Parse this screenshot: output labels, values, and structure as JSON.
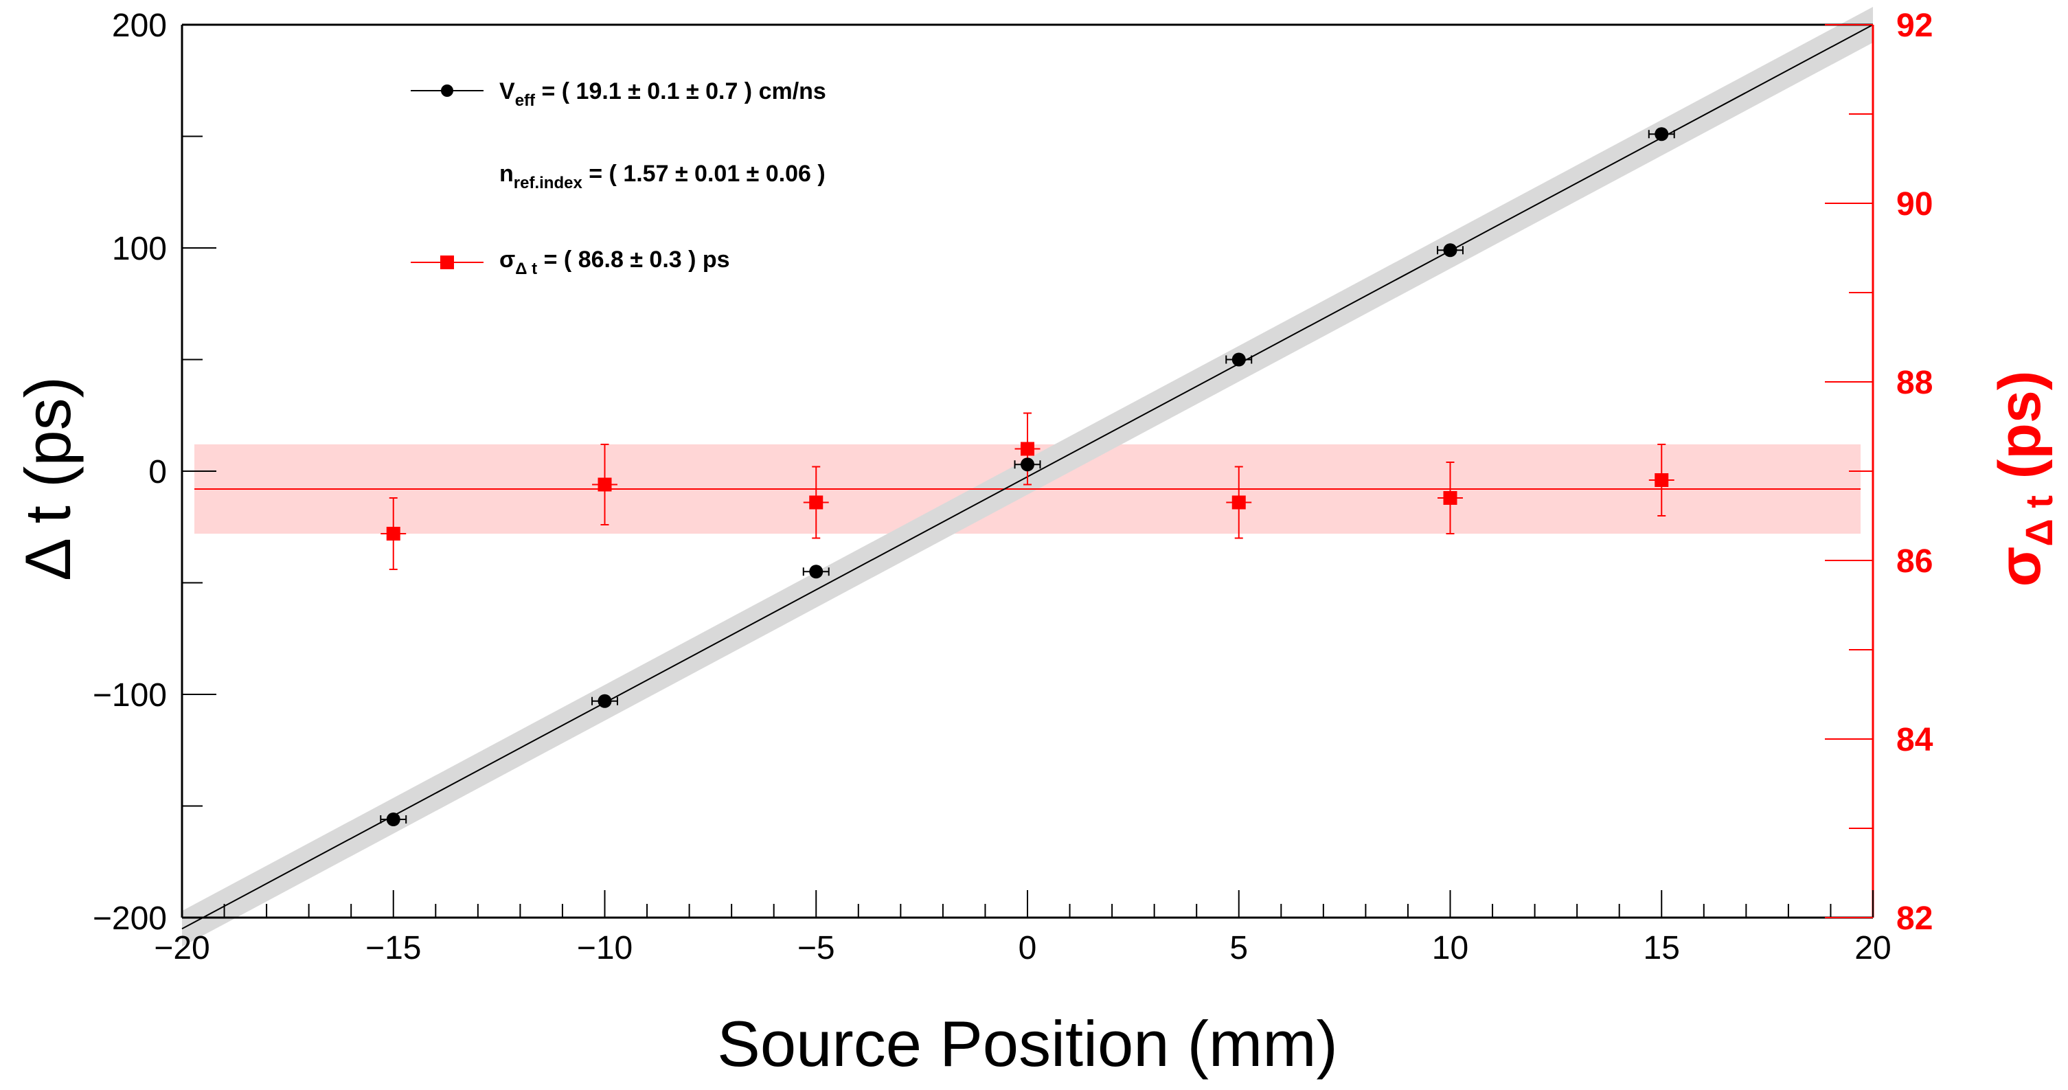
{
  "chart_data": {
    "type": "scatter",
    "xlabel": "Source Position (mm)",
    "ylabel_left": "Δ t (ps)",
    "ylabel_right_main": "σ",
    "ylabel_right_sub": "Δ t",
    "ylabel_right_unit": " (ps)",
    "xlim": [
      -20,
      20
    ],
    "ylim_left": [
      -200,
      200
    ],
    "ylim_right": [
      82,
      92
    ],
    "x_ticks": [
      -20,
      -15,
      -10,
      -5,
      0,
      5,
      10,
      15,
      20
    ],
    "x_tick_labels": [
      "−20",
      "−15",
      "−10",
      "−5",
      "0",
      "5",
      "10",
      "15",
      "20"
    ],
    "y_left_ticks": [
      -200,
      -100,
      0,
      100,
      200
    ],
    "y_left_tick_labels": [
      "−200",
      "−100",
      "0",
      "100",
      "200"
    ],
    "y_right_ticks": [
      82,
      84,
      86,
      88,
      90,
      92
    ],
    "y_right_tick_labels": [
      "82",
      "84",
      "86",
      "88",
      "90",
      "92"
    ],
    "colors": {
      "series1": "#000000",
      "series2": "#ff0000",
      "band1": "#d9d9d9",
      "band2": "#ffd6d6"
    },
    "series": [
      {
        "name": "Δt",
        "axis": "left",
        "marker": "circle",
        "x": [
          -15,
          -10,
          -5,
          0,
          5,
          10,
          15
        ],
        "y": [
          -156,
          -103,
          -45,
          3,
          50,
          99,
          151
        ],
        "xerr": 0.3,
        "fit": {
          "x": [
            -20,
            20
          ],
          "y": [
            -205,
            200
          ],
          "band_halfwidth": 8
        }
      },
      {
        "name": "σΔt",
        "axis": "right",
        "marker": "square",
        "x": [
          -15,
          -10,
          -5,
          0,
          5,
          10,
          15
        ],
        "y": [
          86.3,
          86.85,
          86.65,
          87.25,
          86.65,
          86.7,
          86.9
        ],
        "yerr": [
          0.4,
          0.45,
          0.4,
          0.4,
          0.4,
          0.4,
          0.4
        ],
        "xerr": 0.3,
        "fit": {
          "value": 86.8,
          "band": [
            86.3,
            87.3
          ]
        }
      }
    ],
    "legend": [
      {
        "main": "V",
        "sub": "eff",
        "text": " = (  19.1 ±  0.1 ±  0.7 ) cm/ns",
        "marker": "circle"
      },
      {
        "main": "n",
        "sub": "ref.index",
        "text": " = ( 1.57 ± 0.01 ± 0.06 )",
        "marker": "none"
      },
      {
        "main": "σ",
        "sub": "Δ t",
        "text": " = (  86.8 ±  0.3 ) ps",
        "marker": "square"
      }
    ]
  }
}
